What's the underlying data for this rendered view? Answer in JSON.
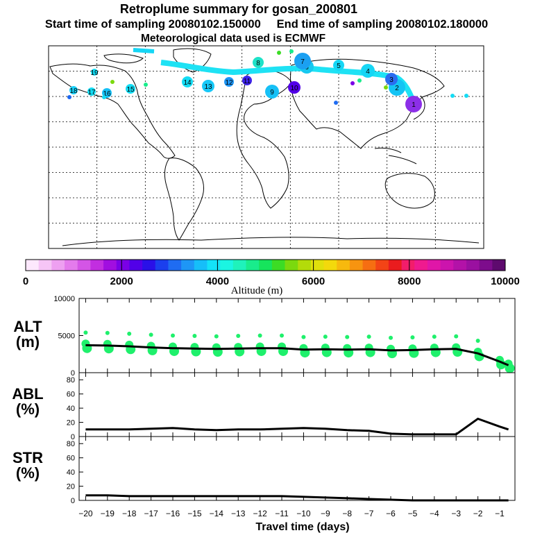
{
  "header": {
    "title": "Retroplume summary for gosan_200801",
    "start_label": "Start time of sampling 20080102.150000",
    "end_label": "End time of sampling 20080102.180000",
    "met_label": "Meteorological data used is ECMWF"
  },
  "colorbar": {
    "xlabel": "Altitude (m)",
    "ticks": [
      "0",
      "2000",
      "4000",
      "6000",
      "8000",
      "10000"
    ],
    "colors": [
      "#fde8fd",
      "#f6c5f6",
      "#eea0f1",
      "#e47bec",
      "#d455e6",
      "#c22ee0",
      "#a10ee0",
      "#7a00e6",
      "#5200e8",
      "#2a10e8",
      "#1b3fee",
      "#1f6cf2",
      "#1e96f6",
      "#16bef9",
      "#14e2f9",
      "#1bf5e2",
      "#1ff2bb",
      "#19ec8c",
      "#16e45c",
      "#3cdc25",
      "#7bd90e",
      "#b3db0a",
      "#e0e00c",
      "#f3d90c",
      "#f7b90e",
      "#f79410",
      "#f66e12",
      "#f34416",
      "#ea1c1e",
      "#f21d6a",
      "#ef1a8f",
      "#e016a8",
      "#cc14ad",
      "#b312a8",
      "#9a10a0",
      "#7d0c8c",
      "#5e0a6e"
    ]
  },
  "map": {
    "markers": [
      "1",
      "2",
      "3",
      "4",
      "5",
      "6",
      "7",
      "8",
      "9",
      "10",
      "11",
      "12",
      "13",
      "14",
      "15",
      "16",
      "17",
      "18",
      "19"
    ]
  },
  "xaxis": {
    "label": "Travel time (days)",
    "ticks": [
      "−20",
      "−19",
      "−18",
      "−17",
      "−16",
      "−15",
      "−14",
      "−13",
      "−12",
      "−11",
      "−10",
      "−9",
      "−8",
      "−7",
      "−6",
      "−5",
      "−4",
      "−3",
      "−2",
      "−1"
    ]
  },
  "chart_data": [
    {
      "type": "line",
      "name": "ALT",
      "ylabel": "ALT (m)",
      "ylim": [
        0,
        10000
      ],
      "yticks": [
        "0",
        "5000",
        "10000"
      ],
      "x": [
        -20,
        -19,
        -18,
        -17,
        -16,
        -15,
        -14,
        -13,
        -12,
        -11,
        -10,
        -9,
        -8,
        -7,
        -6,
        -5,
        -4,
        -3,
        -2,
        -1,
        -0.6
      ],
      "values": [
        3700,
        3650,
        3550,
        3400,
        3300,
        3250,
        3200,
        3250,
        3300,
        3300,
        3100,
        3150,
        3100,
        3150,
        3000,
        3050,
        3150,
        3200,
        2600,
        1500,
        1000
      ],
      "scatter_color": "#1ff06c"
    },
    {
      "type": "line",
      "name": "ABL",
      "ylabel": "ABL (%)",
      "ylim": [
        0,
        90
      ],
      "yticks": [
        "0",
        "20",
        "40",
        "60",
        "80"
      ],
      "x": [
        -20,
        -19,
        -18,
        -17,
        -16,
        -15,
        -14,
        -13,
        -12,
        -11,
        -10,
        -9,
        -8,
        -7,
        -6,
        -5,
        -4,
        -3,
        -2,
        -1,
        -0.6
      ],
      "values": [
        10,
        10,
        10,
        11,
        12,
        10,
        9,
        10,
        10,
        11,
        12,
        11,
        9,
        8,
        4,
        3,
        3,
        3,
        25,
        14,
        10
      ]
    },
    {
      "type": "line",
      "name": "STR",
      "ylabel": "STR (%)",
      "ylim": [
        0,
        90
      ],
      "yticks": [
        "0",
        "20",
        "40",
        "60",
        "80"
      ],
      "x": [
        -20,
        -19,
        -18,
        -17,
        -16,
        -15,
        -14,
        -13,
        -12,
        -11,
        -10,
        -9,
        -8,
        -7,
        -6,
        -5,
        -4,
        -3,
        -2,
        -1,
        -0.6
      ],
      "values": [
        7,
        7,
        6,
        6,
        6,
        6,
        6,
        6,
        6,
        6,
        5,
        4,
        3,
        2,
        1,
        0,
        0,
        0,
        0,
        0,
        0
      ]
    }
  ]
}
